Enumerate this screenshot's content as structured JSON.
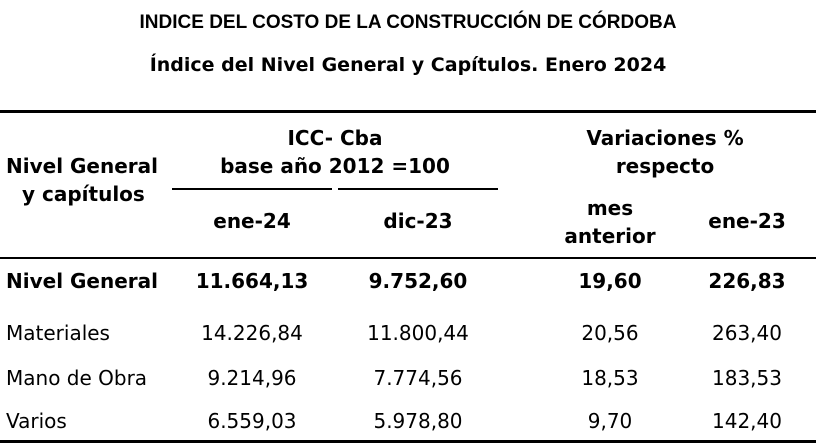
{
  "title": "INDICE DEL COSTO DE LA CONSTRUCCIÓN DE CÓRDOBA",
  "subtitle": "Índice del Nivel General y Capítulos.  Enero 2024",
  "header": {
    "row_label_1": "Nivel General",
    "row_label_2": "y capítulos",
    "icc_1": "ICC- Cba",
    "icc_2": "base año 2012 =100",
    "var_1": "Variaciones %",
    "var_2": "respecto",
    "col1": "ene-24",
    "col2": "dic-23",
    "col3_1": "mes",
    "col3_2": "anterior",
    "col4": "ene-23"
  },
  "rows": [
    {
      "label": "Nivel General",
      "c1": "11.664,13",
      "c2": "9.752,60",
      "c3": "19,60",
      "c4": "226,83"
    },
    {
      "label": "Materiales",
      "c1": "14.226,84",
      "c2": "11.800,44",
      "c3": "20,56",
      "c4": "263,40"
    },
    {
      "label": "Mano de Obra",
      "c1": "9.214,96",
      "c2": "7.774,56",
      "c3": "18,53",
      "c4": "183,53"
    },
    {
      "label": "Varios",
      "c1": "6.559,03",
      "c2": "5.978,80",
      "c3": "9,70",
      "c4": "142,40"
    }
  ]
}
